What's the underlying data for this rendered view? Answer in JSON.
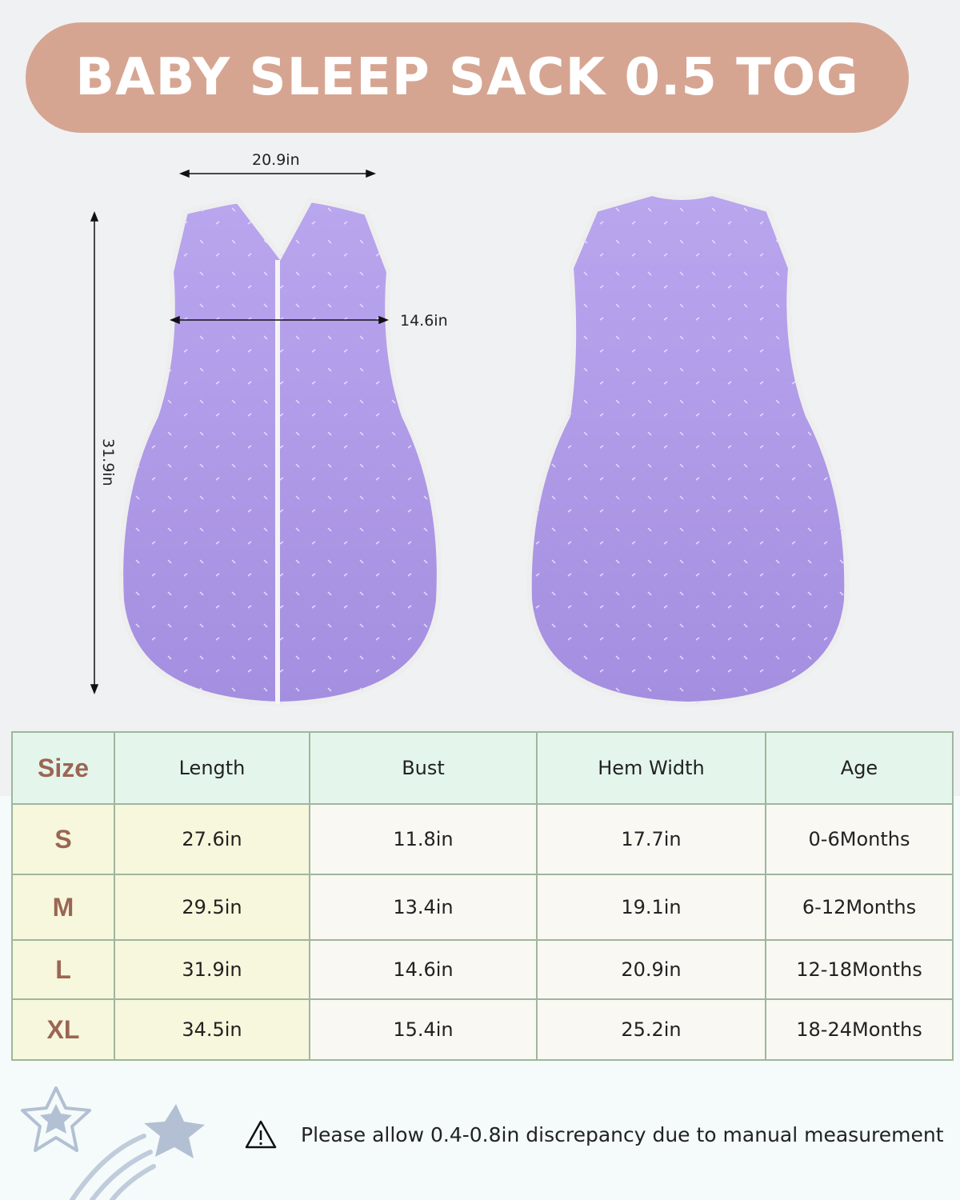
{
  "title": "BABY SLEEP SACK 0.5 TOG",
  "dimensions": {
    "width": "20.9in",
    "bust": "14.6in",
    "length": "31.9in"
  },
  "colors": {
    "banner": "#d6a592",
    "sack": "#b09ae6",
    "size_text": "#9c6553",
    "table_border": "#9fb69d"
  },
  "table": {
    "headers": [
      "Size",
      "Length",
      "Bust",
      "Hem Width",
      "Age"
    ],
    "rows": [
      [
        "S",
        "27.6in",
        "11.8in",
        "17.7in",
        "0-6Months"
      ],
      [
        "M",
        "29.5in",
        "13.4in",
        "19.1in",
        "6-12Months"
      ],
      [
        "L",
        "31.9in",
        "14.6in",
        "20.9in",
        "12-18Months"
      ],
      [
        "XL",
        "34.5in",
        "15.4in",
        "25.2in",
        "18-24Months"
      ]
    ]
  },
  "note": {
    "icon": "warning-triangle-icon",
    "text": "Please allow 0.4-0.8in discrepancy due to manual measurement"
  }
}
